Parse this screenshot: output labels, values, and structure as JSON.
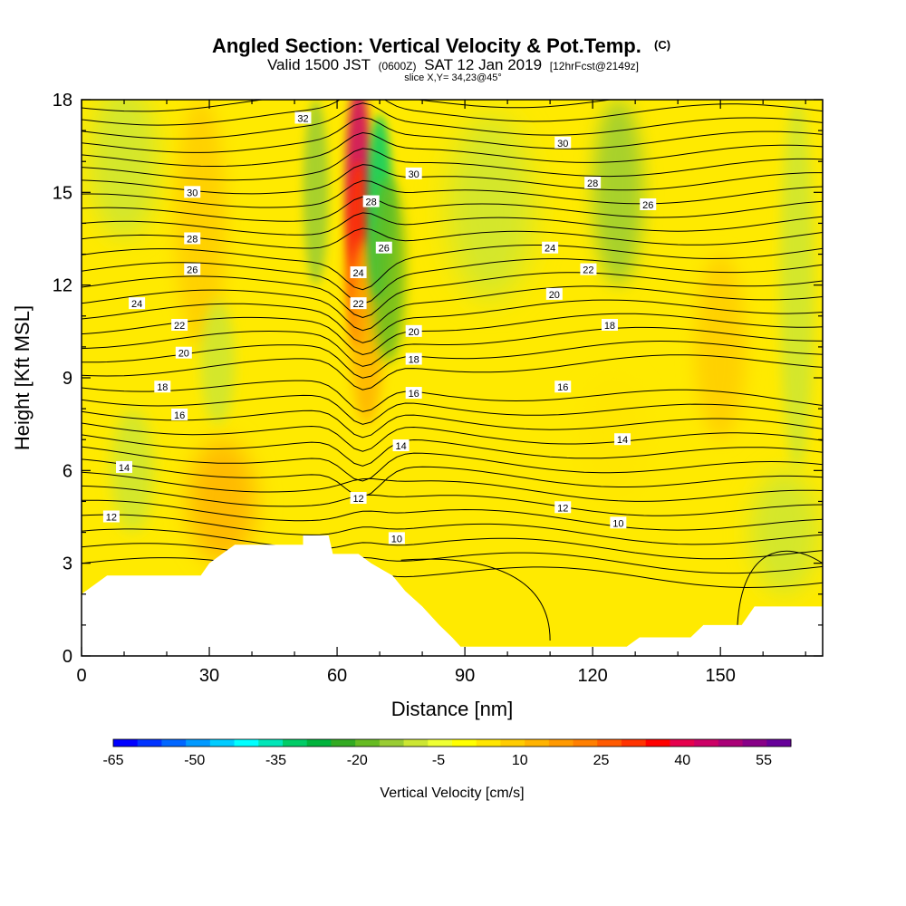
{
  "header": {
    "title": "Angled Section: Vertical Velocity & Pot.Temp.",
    "title_unit": "(C)",
    "valid_prefix": "Valid 1500 JST",
    "valid_zulu": "(0600Z)",
    "valid_date": "SAT 12 Jan 2019",
    "forecast": "[12hrFcst@2149z]",
    "slice": "slice X,Y= 34,23@45°"
  },
  "colorbar": {
    "label": "Vertical Velocity [cm/s]",
    "colors": [
      "#0000ff",
      "#0033ff",
      "#0066ff",
      "#0099ff",
      "#00ccff",
      "#00ffff",
      "#00e6b8",
      "#00cc66",
      "#00b33c",
      "#33aa22",
      "#66bb22",
      "#99cc33",
      "#cce633",
      "#eeff33",
      "#ffff00",
      "#ffe600",
      "#ffcc00",
      "#ffb300",
      "#ff9900",
      "#ff7f00",
      "#ff5a00",
      "#ff3300",
      "#ff0000",
      "#e6004d",
      "#cc0066",
      "#aa0077",
      "#880088",
      "#660099"
    ],
    "tick_labels": [
      "-65",
      "-50",
      "-35",
      "-20",
      "-5",
      "10",
      "25",
      "40",
      "55"
    ],
    "tick_values": [
      -65,
      -50,
      -35,
      -20,
      -5,
      10,
      25,
      40,
      55
    ]
  },
  "chart_data": {
    "type": "heatmap",
    "title": "Angled Section: Vertical Velocity & Pot.Temp.",
    "xlabel": "Distance [nm]",
    "ylabel": "Height [Kft MSL]",
    "xlim": [
      0,
      174
    ],
    "ylim": [
      0,
      18
    ],
    "x_ticks": [
      0,
      30,
      60,
      90,
      120,
      150
    ],
    "y_ticks": [
      0,
      3,
      6,
      9,
      12,
      15,
      18
    ],
    "terrain": [
      [
        0,
        2
      ],
      [
        3,
        2.3
      ],
      [
        6,
        2.6
      ],
      [
        28,
        2.6
      ],
      [
        30,
        3
      ],
      [
        33,
        3.3
      ],
      [
        36,
        3.6
      ],
      [
        52,
        3.6
      ],
      [
        52,
        3.9
      ],
      [
        58,
        3.9
      ],
      [
        59,
        3.3
      ],
      [
        65,
        3.3
      ],
      [
        68,
        3.0
      ],
      [
        73,
        2.6
      ],
      [
        76,
        2.1
      ],
      [
        80,
        1.6
      ],
      [
        84,
        1.0
      ],
      [
        87,
        0.6
      ],
      [
        89,
        0.3
      ],
      [
        128,
        0.3
      ],
      [
        131,
        0.6
      ],
      [
        143,
        0.6
      ],
      [
        146,
        1.0
      ],
      [
        155,
        1.0
      ],
      [
        158,
        1.6
      ],
      [
        174,
        1.6
      ]
    ],
    "velocity_cells": [
      {
        "x": 65,
        "y": 15.5,
        "value": 45,
        "sx": 3,
        "sy": 3
      },
      {
        "x": 65,
        "y": 13,
        "value": 30,
        "sx": 3,
        "sy": 3
      },
      {
        "x": 67,
        "y": 10.5,
        "value": 15,
        "sx": 4,
        "sy": 3
      },
      {
        "x": 70,
        "y": 14.5,
        "value": -30,
        "sx": 3,
        "sy": 3
      },
      {
        "x": 72,
        "y": 12.5,
        "value": -20,
        "sx": 4,
        "sy": 3
      },
      {
        "x": 55,
        "y": 15,
        "value": -12,
        "sx": 3,
        "sy": 3
      },
      {
        "x": 126,
        "y": 15,
        "value": -15,
        "sx": 6,
        "sy": 3
      },
      {
        "x": 96,
        "y": 14.5,
        "value": -8,
        "sx": 10,
        "sy": 3
      },
      {
        "x": 10,
        "y": 16,
        "value": -8,
        "sx": 8,
        "sy": 2.5
      },
      {
        "x": 12,
        "y": 6,
        "value": -10,
        "sx": 5,
        "sy": 2
      },
      {
        "x": 33,
        "y": 5,
        "value": 12,
        "sx": 8,
        "sy": 2
      },
      {
        "x": 28,
        "y": 14,
        "value": 8,
        "sx": 6,
        "sy": 4
      },
      {
        "x": 150,
        "y": 10,
        "value": 8,
        "sx": 6,
        "sy": 3
      },
      {
        "x": 125,
        "y": 7,
        "value": 6,
        "sx": 8,
        "sy": 2
      },
      {
        "x": 168,
        "y": 12,
        "value": -8,
        "sx": 4,
        "sy": 6
      },
      {
        "x": 165,
        "y": 4,
        "value": -8,
        "sx": 8,
        "sy": 2
      },
      {
        "x": 32,
        "y": 9.5,
        "value": -7,
        "sx": 4,
        "sy": 2
      }
    ],
    "theta_levels": [
      10,
      12,
      14,
      16,
      18,
      20,
      22,
      24,
      26,
      28,
      30,
      32
    ],
    "contour_labels": [
      {
        "text": "12",
        "x": 7,
        "y": 4.5
      },
      {
        "text": "14",
        "x": 10,
        "y": 6.1
      },
      {
        "text": "16",
        "x": 23,
        "y": 7.8
      },
      {
        "text": "18",
        "x": 19,
        "y": 8.7
      },
      {
        "text": "20",
        "x": 24,
        "y": 9.8
      },
      {
        "text": "22",
        "x": 23,
        "y": 10.7
      },
      {
        "text": "24",
        "x": 13,
        "y": 11.4
      },
      {
        "text": "26",
        "x": 26,
        "y": 12.5
      },
      {
        "text": "28",
        "x": 26,
        "y": 13.5
      },
      {
        "text": "30",
        "x": 26,
        "y": 15
      },
      {
        "text": "32",
        "x": 52,
        "y": 17.4
      },
      {
        "text": "28",
        "x": 68,
        "y": 14.7
      },
      {
        "text": "26",
        "x": 71,
        "y": 13.2
      },
      {
        "text": "24",
        "x": 65,
        "y": 12.4
      },
      {
        "text": "22",
        "x": 65,
        "y": 11.4
      },
      {
        "text": "30",
        "x": 78,
        "y": 15.6
      },
      {
        "text": "20",
        "x": 78,
        "y": 10.5
      },
      {
        "text": "18",
        "x": 78,
        "y": 9.6
      },
      {
        "text": "16",
        "x": 78,
        "y": 8.5
      },
      {
        "text": "14",
        "x": 75,
        "y": 6.8
      },
      {
        "text": "12",
        "x": 65,
        "y": 5.1
      },
      {
        "text": "10",
        "x": 74,
        "y": 3.8
      },
      {
        "text": "30",
        "x": 113,
        "y": 16.6
      },
      {
        "text": "28",
        "x": 120,
        "y": 15.3
      },
      {
        "text": "24",
        "x": 110,
        "y": 13.2
      },
      {
        "text": "22",
        "x": 119,
        "y": 12.5
      },
      {
        "text": "20",
        "x": 111,
        "y": 11.7
      },
      {
        "text": "18",
        "x": 124,
        "y": 10.7
      },
      {
        "text": "16",
        "x": 113,
        "y": 8.7
      },
      {
        "text": "12",
        "x": 113,
        "y": 4.8
      },
      {
        "text": "10",
        "x": 126,
        "y": 4.3
      },
      {
        "text": "14",
        "x": 127,
        "y": 7
      },
      {
        "text": "26",
        "x": 133,
        "y": 14.6
      }
    ]
  }
}
